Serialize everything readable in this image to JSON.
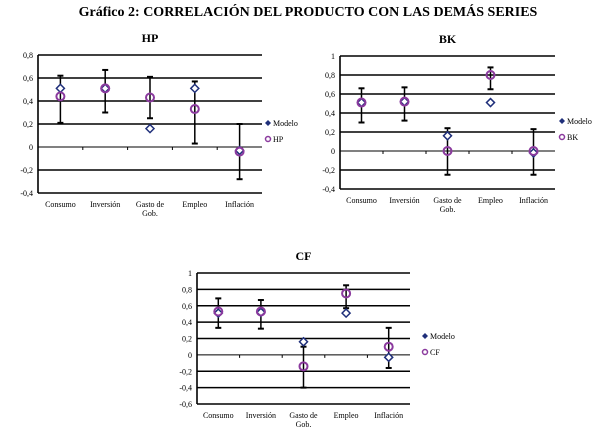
{
  "title": "Gráfico 2: CORRELACIÓN DEL PRODUCTO CON LAS DEMÁS SERIES",
  "colors": {
    "modelo": "#1f2f7a",
    "data": "#8b3a9e",
    "grid": "#000000"
  },
  "chart_data": [
    {
      "type": "scatter",
      "title": "HP",
      "categories": [
        "Consumo",
        "Inversión",
        "Gasto de|Gob.",
        "Empleo",
        "Inflación"
      ],
      "ylim": [
        -0.4,
        0.8
      ],
      "yticks": [
        "-0,4",
        "-0,2",
        "0",
        "0,2",
        "0,4",
        "0,6",
        "0,8"
      ],
      "legend": [
        "Modelo",
        "HP"
      ],
      "legend_position": "right",
      "modelo": [
        0.51,
        0.51,
        0.16,
        0.51,
        -0.03
      ],
      "data": [
        0.44,
        0.51,
        0.43,
        0.33,
        -0.04
      ],
      "err_low": [
        0.21,
        0.3,
        0.25,
        0.03,
        -0.28
      ],
      "err_high": [
        0.62,
        0.67,
        0.61,
        0.57,
        0.2
      ]
    },
    {
      "type": "scatter",
      "title": "BK",
      "categories": [
        "Consumo",
        "Inversión",
        "Gasto de|Gob.",
        "Empleo",
        "Inflación"
      ],
      "ylim": [
        -0.4,
        1.0
      ],
      "yticks": [
        "-0,4",
        "-0,2",
        "0",
        "0,2",
        "0,4",
        "0,6",
        "0,8",
        "1"
      ],
      "legend": [
        "Modelo",
        "BK"
      ],
      "legend_position": "right",
      "modelo": [
        0.51,
        0.52,
        0.16,
        0.51,
        -0.02
      ],
      "data": [
        0.51,
        0.52,
        0.0,
        0.8,
        0.0
      ],
      "err_low": [
        0.3,
        0.32,
        -0.25,
        0.65,
        -0.25
      ],
      "err_high": [
        0.66,
        0.67,
        0.24,
        0.88,
        0.23
      ]
    },
    {
      "type": "scatter",
      "title": "CF",
      "categories": [
        "Consumo",
        "Inversión",
        "Gasto de|Gob.",
        "Empleo",
        "Inflación"
      ],
      "ylim": [
        -0.6,
        1.0
      ],
      "yticks": [
        "-0,6",
        "-0,4",
        "-0,2",
        "0",
        "0,2",
        "0,4",
        "0,6",
        "0,8",
        "1"
      ],
      "legend": [
        "Modelo",
        "CF"
      ],
      "legend_position": "right",
      "modelo": [
        0.51,
        0.52,
        0.16,
        0.51,
        -0.03
      ],
      "data": [
        0.53,
        0.53,
        -0.14,
        0.75,
        0.1
      ],
      "err_low": [
        0.33,
        0.32,
        -0.4,
        0.57,
        -0.16
      ],
      "err_high": [
        0.69,
        0.67,
        0.1,
        0.85,
        0.33
      ]
    }
  ]
}
